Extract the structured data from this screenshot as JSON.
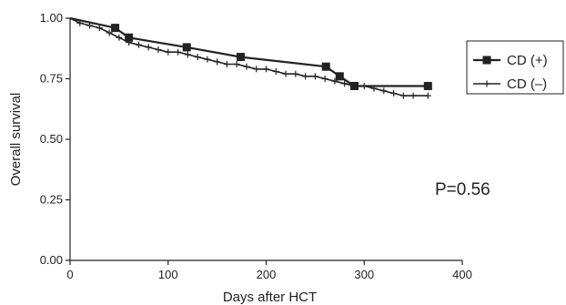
{
  "chart_data": {
    "type": "line",
    "title": "",
    "xlabel": "Days after HCT",
    "ylabel": "Overall survival",
    "xlim": [
      0,
      400
    ],
    "ylim": [
      0,
      1.0
    ],
    "x_ticks": [
      0,
      100,
      200,
      300,
      400
    ],
    "x_tick_labels": [
      "0",
      "100",
      "200",
      "300",
      "400"
    ],
    "y_ticks": [
      0,
      0.25,
      0.5,
      0.75,
      1.0
    ],
    "y_tick_labels": [
      "0.00",
      "0.25",
      "0.50",
      "0.75",
      "1.00"
    ],
    "grid": false,
    "legend_position": "right",
    "annotation": "P=0.56",
    "colors": {
      "line": "#222222",
      "background": "#ffffff"
    },
    "series": [
      {
        "name": "CD (+)",
        "marker": "square",
        "color": "#222222",
        "x": [
          0,
          46,
          60,
          119,
          174,
          261,
          275,
          290,
          365
        ],
        "y": [
          1.0,
          0.96,
          0.92,
          0.88,
          0.84,
          0.8,
          0.76,
          0.72,
          0.72
        ]
      },
      {
        "name": "CD (–)",
        "marker": "plus",
        "color": "#222222",
        "x": [
          0,
          10,
          20,
          30,
          40,
          50,
          60,
          70,
          80,
          90,
          100,
          110,
          120,
          130,
          140,
          150,
          160,
          170,
          180,
          190,
          200,
          210,
          220,
          230,
          240,
          250,
          260,
          270,
          280,
          290,
          300,
          310,
          320,
          330,
          340,
          350,
          365
        ],
        "y": [
          1.0,
          0.98,
          0.97,
          0.96,
          0.94,
          0.92,
          0.9,
          0.89,
          0.88,
          0.87,
          0.86,
          0.86,
          0.85,
          0.84,
          0.83,
          0.82,
          0.81,
          0.81,
          0.8,
          0.79,
          0.79,
          0.78,
          0.77,
          0.77,
          0.76,
          0.76,
          0.75,
          0.74,
          0.73,
          0.72,
          0.72,
          0.71,
          0.7,
          0.69,
          0.68,
          0.68,
          0.68
        ]
      }
    ]
  }
}
